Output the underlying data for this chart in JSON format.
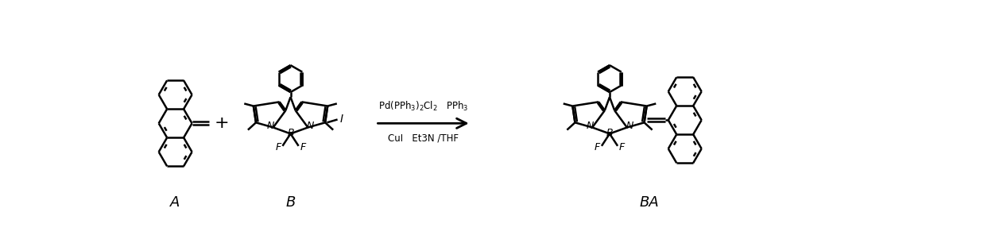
{
  "bg_color": "#ffffff",
  "label_A": "A",
  "label_B": "B",
  "label_BA": "BA",
  "fig_width": 12.38,
  "fig_height": 3.06,
  "dpi": 100,
  "lw": 1.8
}
